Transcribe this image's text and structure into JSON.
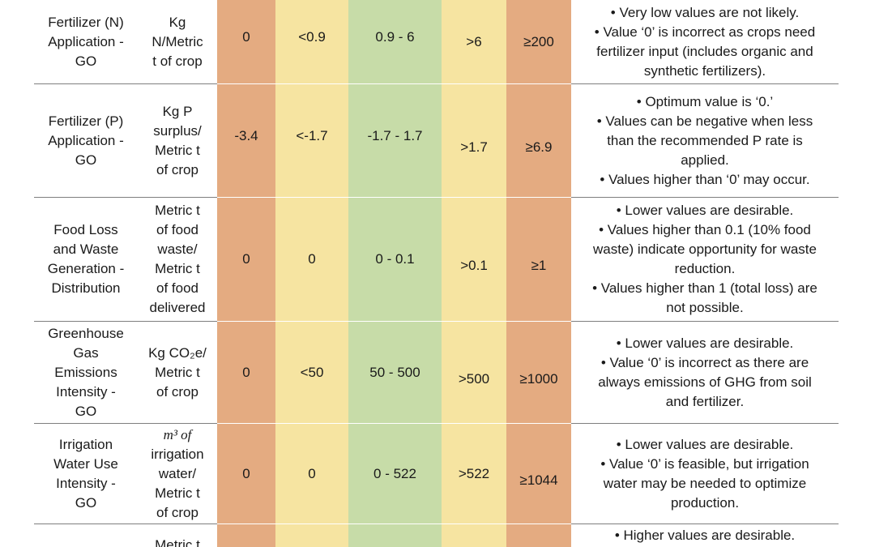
{
  "rows": [
    {
      "indicator": [
        "Fertilizer (N)",
        "Application -",
        "GO"
      ],
      "unit": [
        "Kg",
        "N/Metric",
        "t of crop"
      ],
      "v1": "0",
      "v2": "<0.9",
      "v3": "0.9 - 6",
      "v4": ">6",
      "v5": "≥200",
      "notes": [
        "• Very low values are not likely.",
        "• Value ‘0’ is incorrect as crops need",
        "fertilizer input (includes organic and",
        "synthetic fertilizers)."
      ]
    },
    {
      "indicator": [
        "Fertilizer (P)",
        "Application -",
        "GO"
      ],
      "unit": [
        "Kg P",
        "surplus/",
        "Metric t",
        "of crop"
      ],
      "v1": "-3.4",
      "v2": "<-1.7",
      "v3": "-1.7 - 1.7",
      "v4": ">1.7",
      "v5": "≥6.9",
      "notes": [
        "• Optimum value is ‘0.’",
        "• Values can be negative when less",
        "than the recommended P rate is",
        "applied.",
        "• Values higher than ‘0’ may occur."
      ]
    },
    {
      "indicator": [
        "Food Loss",
        "and Waste",
        "Generation -",
        "Distribution"
      ],
      "unit": [
        "Metric t",
        "of food",
        "waste/",
        "Metric t",
        "of food",
        "delivered"
      ],
      "v1": "0",
      "v2": "0",
      "v3": "0 - 0.1",
      "v4": ">0.1",
      "v5": "≥1",
      "notes": [
        "• Lower values are desirable.",
        "• Values higher than 0.1 (10% food",
        "waste) indicate opportunity for waste",
        "reduction.",
        "• Values higher than 1 (total loss) are",
        "not possible."
      ]
    },
    {
      "indicator": [
        "Greenhouse",
        "Gas",
        "Emissions",
        "Intensity -",
        "GO"
      ],
      "unit": [
        "Kg CO₂e/",
        "Metric t",
        "of crop"
      ],
      "v1": "0",
      "v2": "<50",
      "v3": "50 - 500",
      "v4": ">500",
      "v5": "≥1000",
      "notes": [
        "• Lower values are desirable.",
        "• Value ‘0’ is incorrect as there are",
        "always emissions of GHG from soil",
        "and fertilizer."
      ]
    },
    {
      "indicator": [
        "Irrigation",
        "Water Use",
        "Intensity -",
        "GO"
      ],
      "unit": [
        "m³ of",
        "irrigation",
        "water/",
        "Metric t",
        "of crop"
      ],
      "v1": "0",
      "v2": "0",
      "v3": "0 - 522",
      "v4": ">522",
      "v5": "≥1044",
      "notes": [
        "• Lower values are desirable.",
        "• Value ‘0’ is feasible, but irrigation",
        "water may be needed to optimize",
        "production."
      ]
    },
    {
      "indicator": [],
      "unit": [
        "Metric t"
      ],
      "v1": "",
      "v2": "",
      "v3": "",
      "v4": "",
      "v5": "",
      "notes": [
        "• Higher values are desirable."
      ]
    }
  ]
}
